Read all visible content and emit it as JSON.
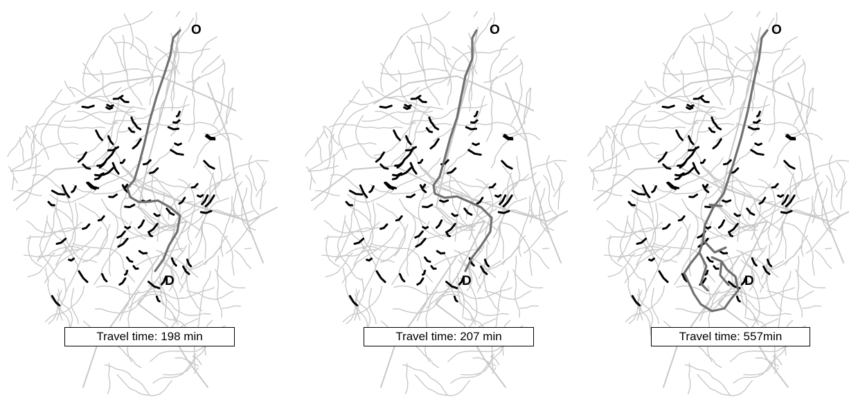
{
  "colors": {
    "road_network": "#c8c8c8",
    "route": "#707070",
    "disrupted_links": "#000000",
    "box_border": "#000000"
  },
  "panels": [
    {
      "origin_label": "O",
      "destination_label": "D",
      "travel_time": "Travel time: 198 min"
    },
    {
      "origin_label": "O",
      "destination_label": "D",
      "travel_time": "Travel time: 207 min"
    },
    {
      "origin_label": "O",
      "destination_label": "D",
      "travel_time": "Travel time: 557min"
    }
  ]
}
